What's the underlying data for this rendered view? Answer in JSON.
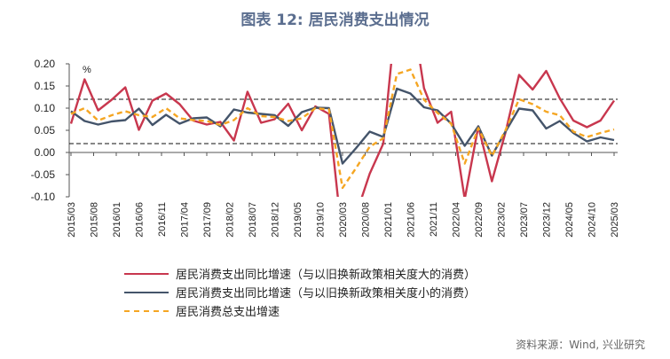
{
  "title": "图表 12: 居民消费支出情况",
  "source": "资料来源：Wind, 兴业研究",
  "chart_data": {
    "type": "line",
    "title": "图表 12: 居民消费支出情况",
    "yunit": "%",
    "ylim": [
      -0.1,
      0.2
    ],
    "yticks": [
      "0.20",
      "0.15",
      "0.10",
      "0.05",
      "0.00",
      "-0.05",
      "-0.10"
    ],
    "xtick_labels": [
      "2015/03",
      "2015/08",
      "2016/01",
      "2016/06",
      "2016/11",
      "2017/04",
      "2017/09",
      "2018/02",
      "2018/07",
      "2018/12",
      "2019/05",
      "2019/10",
      "2020/03",
      "2020/08",
      "2021/01",
      "2021/06",
      "2021/11",
      "2022/04",
      "2022/09",
      "2023/02",
      "2023/07",
      "2023/12",
      "2024/05",
      "2024/10",
      "2025/03"
    ],
    "x_start": "2015/03",
    "x_freq": "quarterly",
    "reference_lines": [
      0.12,
      0.02
    ],
    "legend_position": "bottom",
    "series": [
      {
        "name": "居民消费支出同比增速（与以旧换新政策相关度大的消费）",
        "color": "#C8374E",
        "style": "solid",
        "values": [
          0.065,
          0.165,
          0.095,
          0.119,
          0.147,
          0.051,
          0.117,
          0.133,
          0.109,
          0.072,
          0.063,
          0.069,
          0.027,
          0.137,
          0.067,
          0.075,
          0.11,
          0.05,
          0.104,
          0.087,
          -0.2,
          -0.14,
          -0.048,
          0.02,
          0.33,
          0.34,
          0.145,
          0.067,
          0.092,
          -0.105,
          0.059,
          -0.065,
          0.045,
          0.175,
          0.142,
          0.184,
          0.122,
          0.072,
          0.057,
          0.072,
          0.117
        ]
      },
      {
        "name": "居民消费支出同比增速（与以旧换新政策相关度小的消费）",
        "color": "#44546A",
        "style": "solid",
        "values": [
          0.093,
          0.071,
          0.063,
          0.07,
          0.073,
          0.099,
          0.062,
          0.085,
          0.065,
          0.077,
          0.079,
          0.059,
          0.097,
          0.09,
          0.087,
          0.084,
          0.06,
          0.091,
          0.101,
          0.1,
          -0.025,
          0.01,
          0.047,
          0.035,
          0.144,
          0.133,
          0.102,
          0.095,
          0.065,
          0.015,
          0.059,
          -0.007,
          0.047,
          0.099,
          0.095,
          0.054,
          0.071,
          0.044,
          0.025,
          0.034,
          0.028
        ]
      },
      {
        "name": "居民消费总支出增速",
        "color": "#F5A623",
        "style": "dashed",
        "values": [
          0.087,
          0.1,
          0.072,
          0.084,
          0.093,
          0.084,
          0.08,
          0.1,
          0.077,
          0.073,
          0.071,
          0.062,
          0.073,
          0.1,
          0.082,
          0.08,
          0.071,
          0.077,
          0.1,
          0.097,
          -0.08,
          -0.035,
          0.013,
          0.032,
          0.177,
          0.187,
          0.119,
          0.089,
          0.065,
          -0.025,
          0.055,
          -0.008,
          0.05,
          0.12,
          0.109,
          0.092,
          0.084,
          0.047,
          0.035,
          0.044,
          0.052
        ]
      }
    ]
  }
}
